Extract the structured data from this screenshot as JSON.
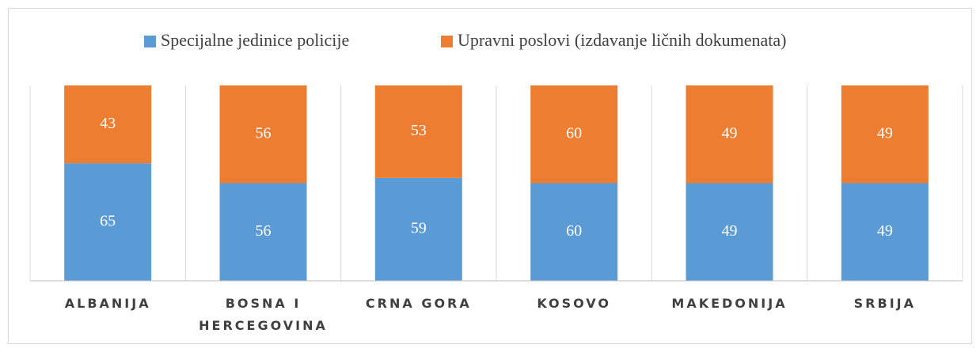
{
  "chart_data": {
    "type": "bar",
    "stacking": "percent",
    "categories": [
      "ALBANIJA",
      "BOSNA I HERCEGOVINA",
      "CRNA GORA",
      "KOSOVO",
      "MAKEDONIJA",
      "SRBIJA"
    ],
    "series": [
      {
        "name": "Specijalne jedinice policije",
        "color": "#5b9bd5",
        "values": [
          65,
          56,
          59,
          60,
          49,
          49
        ]
      },
      {
        "name": "Upravni poslovi (izdavanje ličnih dokumenata)",
        "color": "#ed7d31",
        "values": [
          43,
          56,
          53,
          60,
          49,
          49
        ]
      }
    ],
    "legend": "top"
  }
}
